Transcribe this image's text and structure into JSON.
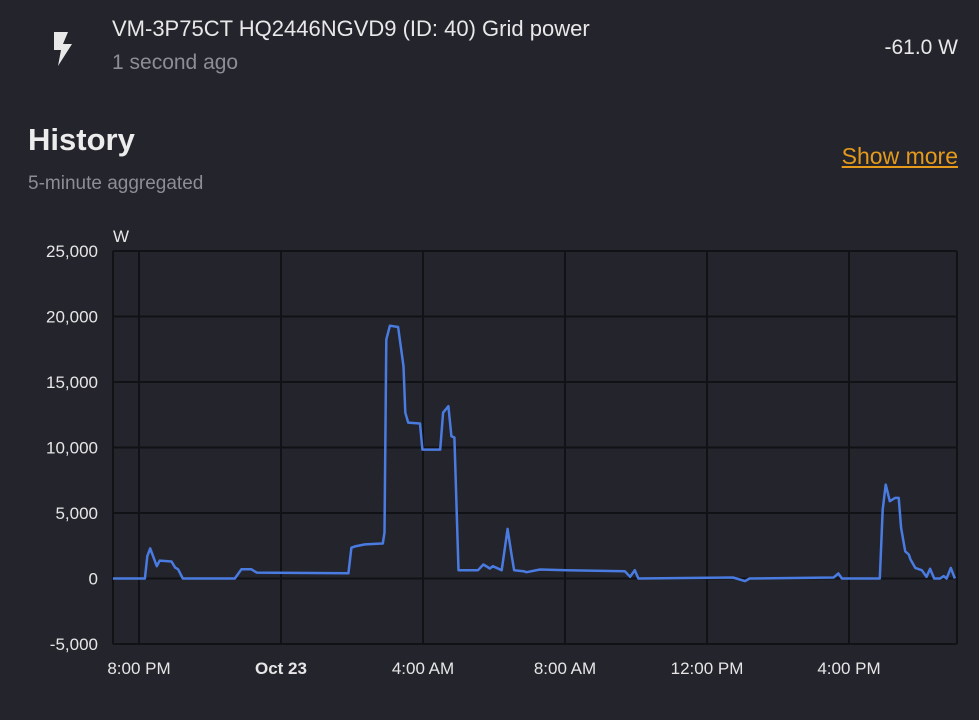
{
  "header": {
    "icon": "flash-icon",
    "title": "VM-3P75CT HQ2446NGVD9 (ID: 40) Grid power",
    "last_changed": "1 second ago",
    "state": "-61.0 W"
  },
  "history": {
    "title": "History",
    "subtitle": "5-minute aggregated",
    "show_more": "Show more"
  },
  "colors": {
    "line": "#4a7be0",
    "accent": "#e59a1c",
    "background": "#23242c",
    "grid": "#111216"
  },
  "chart_data": {
    "type": "line",
    "ylabel": "W",
    "ylim": [
      -5000,
      25000
    ],
    "yticks": [
      "-5,000",
      "0",
      "5,000",
      "10,000",
      "15,000",
      "20,000",
      "25,000"
    ],
    "ytick_values": [
      -5000,
      0,
      5000,
      10000,
      15000,
      20000,
      25000
    ],
    "xlim": [
      "Oct 22 19:16",
      "Oct 23 19:00"
    ],
    "xticks": [
      {
        "label": "8:00 PM",
        "t": "Oct 22 20:00",
        "bold": false
      },
      {
        "label": "Oct 23",
        "t": "Oct 23 00:00",
        "bold": true
      },
      {
        "label": "4:00 AM",
        "t": "Oct 23 04:00",
        "bold": false
      },
      {
        "label": "8:00 AM",
        "t": "Oct 23 08:00",
        "bold": false
      },
      {
        "label": "12:00 PM",
        "t": "Oct 23 12:00",
        "bold": false
      },
      {
        "label": "4:00 PM",
        "t": "Oct 23 16:00",
        "bold": false
      }
    ],
    "grid": true,
    "series": [
      {
        "points": [
          [
            "Oct 22 19:16",
            0
          ],
          [
            "Oct 22 20:10",
            0
          ],
          [
            "Oct 22 20:14",
            1700
          ],
          [
            "Oct 22 20:19",
            2300
          ],
          [
            "Oct 22 20:30",
            940
          ],
          [
            "Oct 22 20:35",
            1370
          ],
          [
            "Oct 22 20:55",
            1300
          ],
          [
            "Oct 22 21:01",
            840
          ],
          [
            "Oct 22 21:06",
            700
          ],
          [
            "Oct 22 21:14",
            0
          ],
          [
            "Oct 22 22:42",
            0
          ],
          [
            "Oct 22 22:53",
            700
          ],
          [
            "Oct 22 23:10",
            700
          ],
          [
            "Oct 22 23:19",
            450
          ],
          [
            "Oct 23 01:54",
            400
          ],
          [
            "Oct 23 01:59",
            2350
          ],
          [
            "Oct 23 02:05",
            2450
          ],
          [
            "Oct 23 02:22",
            2600
          ],
          [
            "Oct 23 02:52",
            2670
          ],
          [
            "Oct 23 02:55",
            3500
          ],
          [
            "Oct 23 02:58",
            18240
          ],
          [
            "Oct 23 03:04",
            19300
          ],
          [
            "Oct 23 03:18",
            19200
          ],
          [
            "Oct 23 03:27",
            16200
          ],
          [
            "Oct 23 03:30",
            12660
          ],
          [
            "Oct 23 03:35",
            11900
          ],
          [
            "Oct 23 03:55",
            11830
          ],
          [
            "Oct 23 03:59",
            9840
          ],
          [
            "Oct 23 04:29",
            9840
          ],
          [
            "Oct 23 04:34",
            12660
          ],
          [
            "Oct 23 04:43",
            13150
          ],
          [
            "Oct 23 04:48",
            10860
          ],
          [
            "Oct 23 04:53",
            10760
          ],
          [
            "Oct 23 05:00",
            630
          ],
          [
            "Oct 23 05:33",
            630
          ],
          [
            "Oct 23 05:42",
            1070
          ],
          [
            "Oct 23 05:53",
            760
          ],
          [
            "Oct 23 05:58",
            940
          ],
          [
            "Oct 23 06:13",
            630
          ],
          [
            "Oct 23 06:23",
            3790
          ],
          [
            "Oct 23 06:29",
            1980
          ],
          [
            "Oct 23 06:34",
            630
          ],
          [
            "Oct 23 06:50",
            560
          ],
          [
            "Oct 23 06:55",
            480
          ],
          [
            "Oct 23 07:18",
            690
          ],
          [
            "Oct 23 08:03",
            630
          ],
          [
            "Oct 23 09:41",
            560
          ],
          [
            "Oct 23 09:50",
            130
          ],
          [
            "Oct 23 09:58",
            630
          ],
          [
            "Oct 23 10:04",
            0
          ],
          [
            "Oct 23 12:44",
            80
          ],
          [
            "Oct 23 13:04",
            -200
          ],
          [
            "Oct 23 13:12",
            0
          ],
          [
            "Oct 23 15:34",
            80
          ],
          [
            "Oct 23 15:42",
            380
          ],
          [
            "Oct 23 15:48",
            0
          ],
          [
            "Oct 23 16:52",
            0
          ],
          [
            "Oct 23 16:57",
            5260
          ],
          [
            "Oct 23 17:02",
            7170
          ],
          [
            "Oct 23 17:09",
            5900
          ],
          [
            "Oct 23 17:18",
            6150
          ],
          [
            "Oct 23 17:24",
            6150
          ],
          [
            "Oct 23 17:28",
            3870
          ],
          [
            "Oct 23 17:35",
            2080
          ],
          [
            "Oct 23 17:41",
            1830
          ],
          [
            "Oct 23 17:44",
            1450
          ],
          [
            "Oct 23 17:52",
            810
          ],
          [
            "Oct 23 18:03",
            630
          ],
          [
            "Oct 23 18:11",
            130
          ],
          [
            "Oct 23 18:17",
            740
          ],
          [
            "Oct 23 18:24",
            0
          ],
          [
            "Oct 23 18:34",
            0
          ],
          [
            "Oct 23 18:40",
            180
          ],
          [
            "Oct 23 18:45",
            0
          ],
          [
            "Oct 23 18:52",
            810
          ],
          [
            "Oct 23 18:59",
            0
          ]
        ]
      }
    ]
  }
}
